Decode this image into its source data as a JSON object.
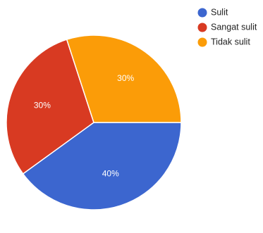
{
  "chart_data": {
    "type": "pie",
    "slices": [
      {
        "label": "Sulit",
        "value": 40,
        "display": "40%",
        "color": "#3c66cf"
      },
      {
        "label": "Sangat sulit",
        "value": 30,
        "display": "30%",
        "color": "#d83a22"
      },
      {
        "label": "Tidak sulit",
        "value": 30,
        "display": "30%",
        "color": "#fb9c08"
      }
    ],
    "start_angle_deg": 0,
    "direction": "clockwise",
    "legend": "top-right"
  }
}
